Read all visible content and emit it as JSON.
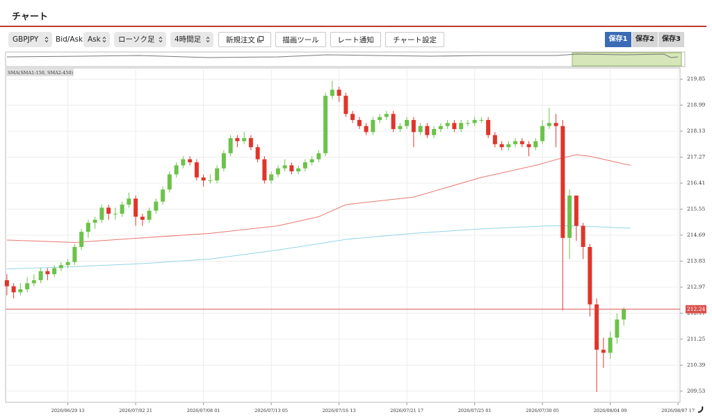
{
  "header": {
    "title": "チャート"
  },
  "toolbar": {
    "symbol": "GBPJPY",
    "bidask_label": "Bid/Ask",
    "side": "Ask",
    "chart_style": "ローソク足",
    "timeframe": "4時間足",
    "buttons": [
      "新規注文",
      "描画ツール",
      "レート通知",
      "チャート設定"
    ],
    "tabs": [
      "保存1",
      "保存2",
      "保存3"
    ]
  },
  "chart_data": {
    "type": "candlestick",
    "categories": [
      null,
      null,
      null,
      null,
      null,
      null,
      null,
      null,
      null,
      "2026/06/29 13",
      null,
      null,
      null,
      null,
      null,
      null,
      null,
      null,
      null,
      "2026/07/02 21",
      null,
      null,
      null,
      null,
      null,
      null,
      null,
      null,
      null,
      "2026/07/08 01",
      null,
      null,
      null,
      null,
      null,
      null,
      null,
      null,
      null,
      "2026/07/13 05",
      null,
      null,
      null,
      null,
      null,
      null,
      null,
      null,
      null,
      "2026/07/16 13",
      null,
      null,
      null,
      null,
      null,
      null,
      null,
      null,
      null,
      "2026/07/21 17",
      null,
      null,
      null,
      null,
      null,
      null,
      null,
      null,
      null,
      "2026/07/25 01",
      null,
      null,
      null,
      null,
      null,
      null,
      null,
      null,
      null,
      "2026/07/30 05",
      null,
      null,
      null,
      null,
      null,
      null,
      null,
      null,
      null,
      "2026/08/04 09",
      null,
      null,
      null,
      null,
      null,
      null,
      null,
      null,
      null,
      "2026/08/07 17"
    ],
    "candles": [
      [
        213.2,
        213.4,
        212.7,
        213.0
      ],
      [
        213.0,
        213.1,
        212.6,
        212.8
      ],
      [
        212.8,
        213.1,
        212.7,
        212.9
      ],
      [
        212.9,
        213.3,
        212.8,
        213.1
      ],
      [
        213.1,
        213.4,
        213.0,
        213.2
      ],
      [
        213.2,
        213.6,
        213.1,
        213.5
      ],
      [
        213.5,
        213.6,
        213.2,
        213.4
      ],
      [
        213.4,
        213.7,
        213.3,
        213.6
      ],
      [
        213.6,
        213.8,
        213.5,
        213.7
      ],
      [
        213.7,
        213.9,
        213.6,
        213.8
      ],
      [
        213.8,
        214.4,
        213.7,
        214.3
      ],
      [
        214.3,
        214.9,
        214.2,
        214.8
      ],
      [
        214.8,
        215.2,
        214.6,
        215.1
      ],
      [
        215.1,
        215.3,
        214.9,
        215.2
      ],
      [
        215.2,
        215.7,
        215.1,
        215.6
      ],
      [
        215.6,
        215.7,
        215.2,
        215.4
      ],
      [
        215.4,
        215.6,
        215.2,
        215.4
      ],
      [
        215.4,
        215.8,
        215.3,
        215.7
      ],
      [
        215.7,
        216.1,
        215.6,
        215.9
      ],
      [
        215.9,
        216.0,
        215.0,
        215.3
      ],
      [
        215.3,
        215.4,
        215.0,
        215.2
      ],
      [
        215.2,
        215.6,
        215.1,
        215.5
      ],
      [
        215.5,
        215.9,
        215.4,
        215.8
      ],
      [
        215.8,
        216.3,
        215.7,
        216.2
      ],
      [
        216.2,
        216.8,
        216.1,
        216.7
      ],
      [
        216.7,
        217.1,
        216.6,
        217.0
      ],
      [
        217.0,
        217.3,
        216.9,
        217.2
      ],
      [
        217.2,
        217.3,
        217.0,
        217.1
      ],
      [
        217.1,
        217.2,
        216.5,
        216.6
      ],
      [
        216.6,
        216.7,
        216.3,
        216.5
      ],
      [
        216.5,
        216.7,
        216.4,
        216.5
      ],
      [
        216.5,
        217.0,
        216.4,
        216.9
      ],
      [
        216.9,
        217.5,
        216.8,
        217.4
      ],
      [
        217.4,
        218.0,
        217.3,
        217.9
      ],
      [
        217.9,
        218.0,
        217.6,
        217.8
      ],
      [
        217.8,
        218.1,
        217.7,
        217.9
      ],
      [
        217.9,
        218.0,
        217.5,
        217.6
      ],
      [
        217.6,
        217.7,
        217.1,
        217.2
      ],
      [
        217.2,
        217.3,
        216.4,
        216.5
      ],
      [
        216.5,
        216.8,
        216.4,
        216.7
      ],
      [
        216.7,
        217.0,
        216.6,
        216.9
      ],
      [
        216.9,
        217.2,
        216.8,
        217.0
      ],
      [
        217.0,
        217.1,
        216.7,
        216.8
      ],
      [
        216.8,
        217.0,
        216.7,
        216.9
      ],
      [
        216.9,
        217.2,
        216.8,
        217.1
      ],
      [
        217.1,
        217.3,
        217.0,
        217.2
      ],
      [
        217.2,
        217.5,
        217.1,
        217.4
      ],
      [
        217.4,
        219.4,
        217.3,
        219.3
      ],
      [
        219.3,
        219.8,
        219.2,
        219.5
      ],
      [
        219.5,
        219.6,
        219.1,
        219.3
      ],
      [
        219.3,
        219.4,
        218.6,
        218.7
      ],
      [
        218.7,
        218.8,
        218.4,
        218.5
      ],
      [
        218.5,
        218.6,
        218.2,
        218.3
      ],
      [
        218.3,
        218.4,
        218.0,
        218.1
      ],
      [
        218.1,
        218.6,
        218.0,
        218.5
      ],
      [
        218.5,
        218.7,
        218.4,
        218.6
      ],
      [
        218.6,
        218.8,
        218.5,
        218.7
      ],
      [
        218.7,
        218.8,
        218.1,
        218.2
      ],
      [
        218.2,
        218.4,
        218.1,
        218.3
      ],
      [
        218.3,
        218.6,
        218.2,
        218.5
      ],
      [
        218.5,
        218.6,
        217.6,
        218.1
      ],
      [
        218.1,
        218.4,
        218.0,
        218.3
      ],
      [
        218.3,
        218.4,
        217.9,
        218.0
      ],
      [
        218.0,
        218.3,
        217.9,
        218.2
      ],
      [
        218.2,
        218.4,
        218.1,
        218.3
      ],
      [
        218.3,
        218.5,
        218.2,
        218.4
      ],
      [
        218.4,
        218.5,
        218.1,
        218.2
      ],
      [
        218.2,
        218.5,
        218.1,
        218.4
      ],
      [
        218.4,
        218.5,
        218.3,
        218.4
      ],
      [
        218.4,
        218.6,
        218.3,
        218.5
      ],
      [
        218.5,
        218.6,
        218.4,
        218.5
      ],
      [
        218.5,
        218.6,
        217.9,
        218.0
      ],
      [
        218.0,
        218.1,
        217.6,
        217.7
      ],
      [
        217.7,
        217.8,
        217.5,
        217.6
      ],
      [
        217.6,
        217.8,
        217.5,
        217.7
      ],
      [
        217.7,
        217.9,
        217.6,
        217.8
      ],
      [
        217.8,
        217.9,
        217.6,
        217.7
      ],
      [
        217.7,
        217.8,
        217.3,
        217.6
      ],
      [
        217.6,
        217.9,
        217.5,
        217.8
      ],
      [
        217.8,
        218.5,
        217.7,
        218.3
      ],
      [
        218.3,
        218.9,
        218.2,
        218.4
      ],
      [
        218.4,
        218.7,
        217.6,
        218.3
      ],
      [
        218.3,
        218.5,
        212.2,
        214.6
      ],
      [
        214.6,
        216.2,
        213.9,
        216.0
      ],
      [
        216.0,
        216.0,
        214.5,
        215.0
      ],
      [
        215.0,
        215.1,
        213.9,
        214.3
      ],
      [
        214.3,
        214.4,
        212.0,
        212.4
      ],
      [
        212.4,
        212.6,
        209.5,
        210.9
      ],
      [
        210.9,
        211.3,
        210.3,
        210.8
      ],
      [
        210.8,
        211.5,
        210.6,
        211.3
      ],
      [
        211.3,
        212.1,
        211.1,
        211.9
      ],
      [
        211.9,
        212.3,
        211.7,
        212.24
      ],
      null,
      null,
      null,
      null,
      null,
      null,
      null,
      null
    ],
    "up_color": "#6cc24a",
    "down_color": "#e0352b",
    "overlay_label": "SMA(SMA1:150, SMA2:450)",
    "overlays": [
      {
        "color": "#e8766e",
        "x": [
          0,
          10,
          20,
          30,
          40,
          46,
          50,
          60,
          70,
          78,
          82,
          84,
          86,
          88,
          92
        ],
        "values": [
          214.53,
          214.45,
          214.6,
          214.75,
          215.0,
          215.3,
          215.7,
          215.95,
          216.6,
          217.0,
          217.25,
          217.35,
          217.3,
          217.2,
          217.0
        ]
      },
      {
        "color": "#92d4e6",
        "x": [
          0,
          10,
          20,
          30,
          40,
          50,
          60,
          70,
          80,
          84,
          92
        ],
        "values": [
          213.57,
          213.65,
          213.75,
          213.9,
          214.2,
          214.55,
          214.75,
          214.9,
          215.0,
          215.0,
          214.92
        ]
      }
    ],
    "current": 212.24,
    "current_color": "#d9534f",
    "ylim": [
      209.16,
      220.22
    ],
    "yticks": [
      209.53,
      210.39,
      211.25,
      212.11,
      212.97,
      213.83,
      214.69,
      215.55,
      216.41,
      217.27,
      218.13,
      218.99,
      219.85
    ],
    "grid": true
  }
}
